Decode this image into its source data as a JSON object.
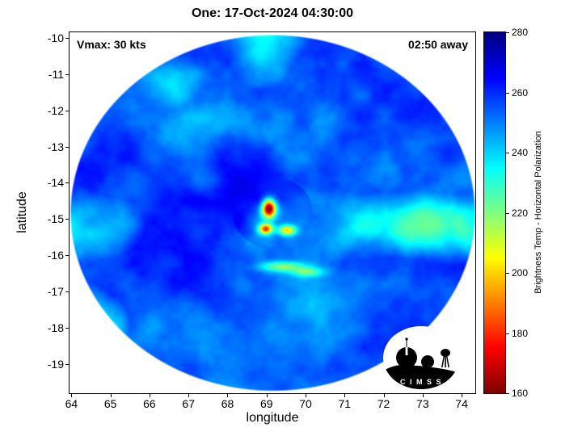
{
  "title": "One: 17-Oct-2024 04:30:00",
  "annotations": {
    "vmax": "Vmax: 30 kts",
    "eta": "02:50 away"
  },
  "axes": {
    "xlabel": "longitude",
    "ylabel": "latitude",
    "x_ticks": [
      64,
      65,
      66,
      67,
      68,
      69,
      70,
      71,
      72,
      73,
      74
    ],
    "y_ticks": [
      -10,
      -11,
      -12,
      -13,
      -14,
      -15,
      -16,
      -17,
      -18,
      -19
    ]
  },
  "colorbar": {
    "label": "Brightness Temp - Horizontal Polarization",
    "ticks": [
      280,
      260,
      240,
      220,
      200,
      180,
      160
    ],
    "min": 160,
    "max": 280,
    "colormap": "jet_reversed",
    "low_color": "#8b0000",
    "high_color": "#00008f"
  },
  "logo": {
    "text": "C I M S S"
  },
  "chart_data": {
    "type": "heatmap",
    "title": "One: 17-Oct-2024 04:30:00",
    "xlabel": "longitude",
    "ylabel": "latitude",
    "xlim": [
      63.95,
      74.35
    ],
    "ylim": [
      -19.8,
      -9.85
    ],
    "grid": false,
    "value_name": "brightness_temp_K",
    "value_range": [
      160,
      280
    ],
    "swath": {
      "shape": "disk",
      "center_lon": 69.15,
      "center_lat": -14.82,
      "radius_lon_deg": 5.18,
      "radius_lat_deg": 4.9,
      "background_temp_K": 256
    },
    "storm_center": {
      "lon": 69.05,
      "lat": -14.75,
      "min_temp_K": 163
    },
    "features": [
      {
        "name": "eyewall-cold-core",
        "lon": 69.05,
        "lat": -14.7,
        "depression_K": 97,
        "sigma_lon": 0.12,
        "sigma_lat": 0.17
      },
      {
        "name": "convective-blob-south",
        "lon": 68.97,
        "lat": -15.26,
        "depression_K": 68,
        "sigma_lon": 0.12,
        "sigma_lat": 0.1
      },
      {
        "name": "convective-blob-southeast",
        "lon": 69.52,
        "lat": -15.3,
        "depression_K": 50,
        "sigma_lon": 0.16,
        "sigma_lat": 0.1
      },
      {
        "name": "rainband-arc-west",
        "lon": 69.4,
        "lat": -16.3,
        "depression_K": 32,
        "sigma_lon": 0.4,
        "sigma_lat": 0.1
      },
      {
        "name": "rainband-arc-east",
        "lon": 70.05,
        "lat": -16.45,
        "depression_K": 24,
        "sigma_lon": 0.28,
        "sigma_lat": 0.09
      }
    ],
    "swath_edge_line": {
      "from": [
        72.1,
        -19.6
      ],
      "to": [
        74.35,
        -16.8
      ]
    }
  }
}
